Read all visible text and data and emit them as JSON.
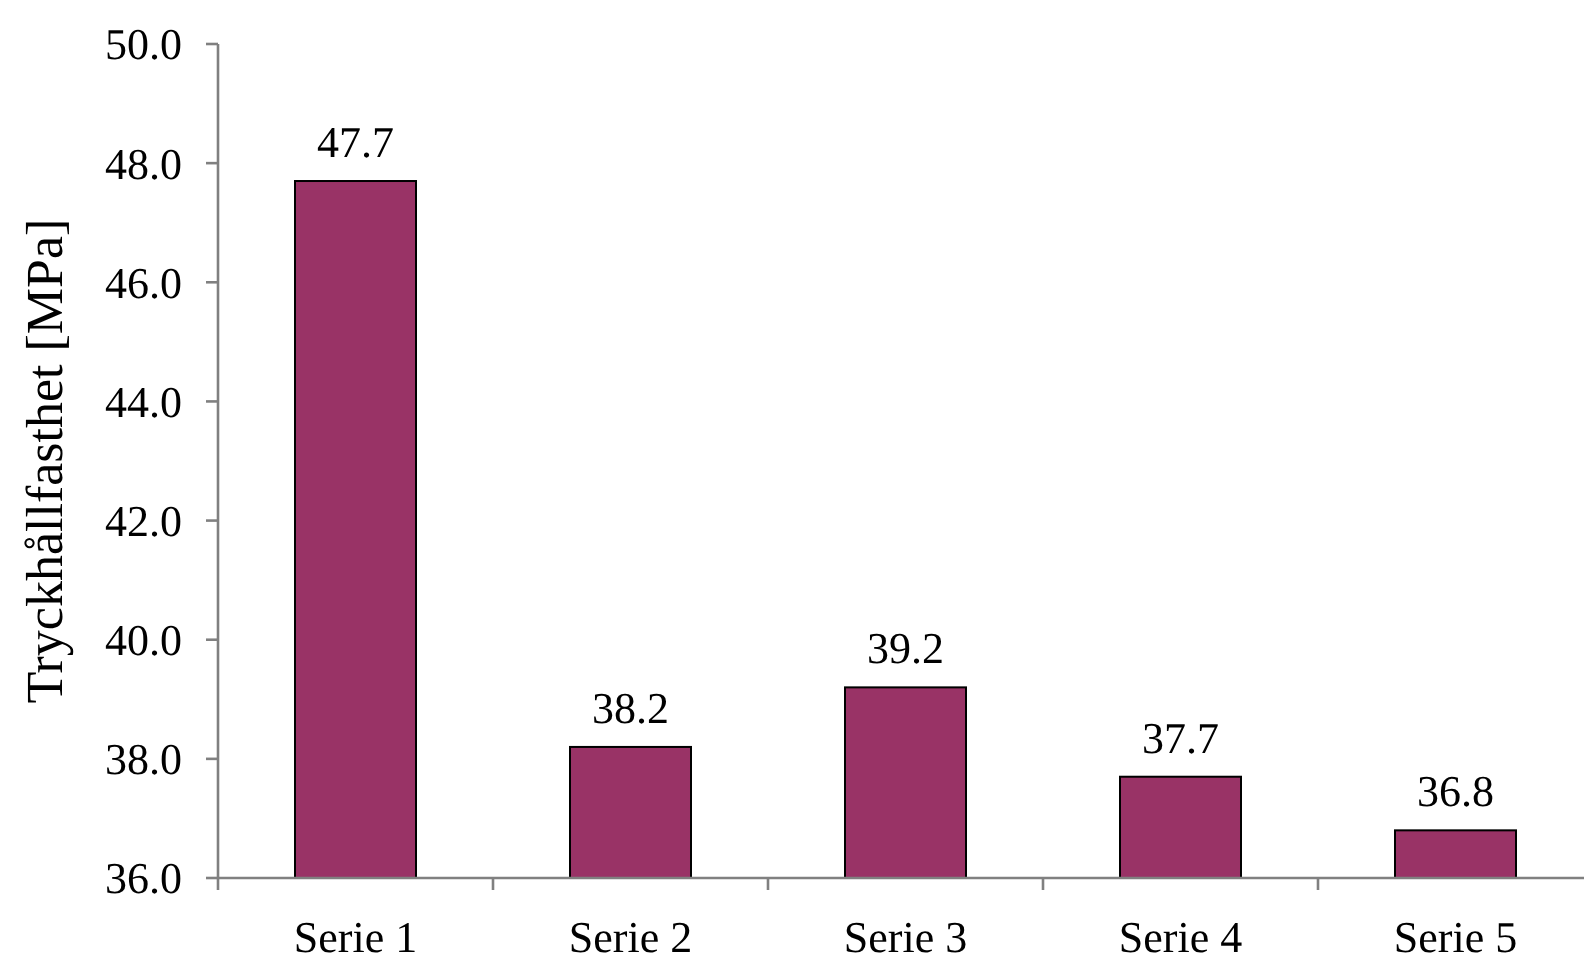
{
  "chart_data": {
    "type": "bar",
    "ylabel": "Tryckhållfasthet [MPa]",
    "categories": [
      "Serie 1",
      "Serie 2",
      "Serie 3",
      "Serie 4",
      "Serie 5"
    ],
    "values": [
      47.7,
      38.2,
      39.2,
      37.7,
      36.8
    ],
    "color": "#993366",
    "ylim": [
      36,
      50
    ],
    "yticks": [
      {
        "value": 36,
        "label": "36.0"
      },
      {
        "value": 38,
        "label": "38.0"
      },
      {
        "value": 40,
        "label": "40.0"
      },
      {
        "value": 42,
        "label": "42.0"
      },
      {
        "value": 44,
        "label": "44.0"
      },
      {
        "value": 46,
        "label": "46.0"
      },
      {
        "value": 48,
        "label": "48.0"
      },
      {
        "value": 50,
        "label": "50.0"
      }
    ],
    "grid": false,
    "data_labels": true
  }
}
